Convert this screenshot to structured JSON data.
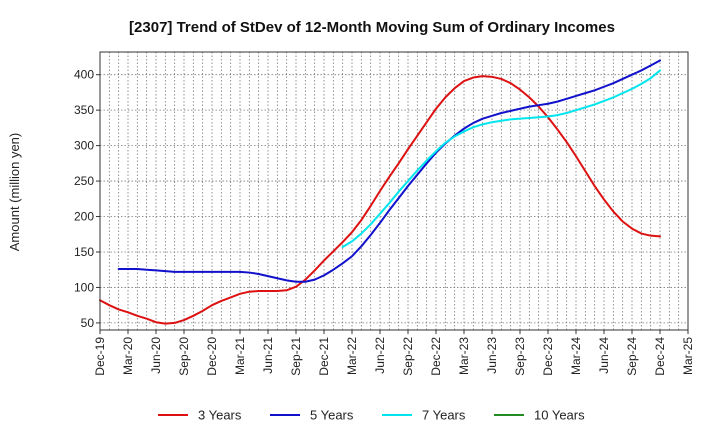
{
  "chart_data": {
    "type": "line",
    "title": "[2307]  Trend of StDev of 12-Month Moving Sum of Ordinary Incomes",
    "xlabel": "",
    "ylabel": "Amount (million yen)",
    "ylim": [
      40,
      432
    ],
    "yticks": [
      50,
      100,
      150,
      200,
      250,
      300,
      350,
      400
    ],
    "xticks": [
      "Dec-19",
      "Mar-20",
      "Jun-20",
      "Sep-20",
      "Dec-20",
      "Mar-21",
      "Jun-21",
      "Sep-21",
      "Dec-21",
      "Mar-22",
      "Jun-22",
      "Sep-22",
      "Dec-22",
      "Mar-23",
      "Jun-23",
      "Sep-23",
      "Dec-23",
      "Mar-24",
      "Jun-24",
      "Sep-24",
      "Dec-24",
      "Mar-25"
    ],
    "grid": true,
    "legend_position": "bottom",
    "series": [
      {
        "name": "3 Years",
        "color": "#dd1111",
        "x": [
          "Dec-19",
          "Jan-20",
          "Feb-20",
          "Mar-20",
          "Apr-20",
          "May-20",
          "Jun-20",
          "Jul-20",
          "Aug-20",
          "Sep-20",
          "Oct-20",
          "Nov-20",
          "Dec-20",
          "Jan-21",
          "Feb-21",
          "Mar-21",
          "Apr-21",
          "May-21",
          "Jun-21",
          "Jul-21",
          "Aug-21",
          "Sep-21",
          "Oct-21",
          "Nov-21",
          "Dec-21",
          "Jan-22",
          "Feb-22",
          "Mar-22",
          "Apr-22",
          "May-22",
          "Jun-22",
          "Jul-22",
          "Aug-22",
          "Sep-22",
          "Oct-22",
          "Nov-22",
          "Dec-22",
          "Jan-23",
          "Feb-23",
          "Mar-23",
          "Apr-23",
          "May-23",
          "Jun-23",
          "Jul-23",
          "Aug-23",
          "Sep-23",
          "Oct-23",
          "Nov-23",
          "Dec-23",
          "Jan-24",
          "Feb-24",
          "Mar-24",
          "Apr-24",
          "May-24",
          "Jun-24",
          "Jul-24",
          "Aug-24",
          "Sep-24",
          "Oct-24",
          "Nov-24",
          "Dec-24"
        ],
        "values": [
          82,
          75,
          69,
          65,
          60,
          56,
          51,
          49,
          50,
          54,
          60,
          67,
          75,
          81,
          86,
          91,
          94,
          95,
          95,
          95,
          96,
          101,
          111,
          124,
          138,
          151,
          164,
          178,
          195,
          215,
          236,
          256,
          275,
          295,
          314,
          333,
          352,
          368,
          381,
          391,
          396,
          398,
          397,
          394,
          388,
          379,
          368,
          355,
          340,
          323,
          305,
          285,
          264,
          243,
          224,
          207,
          193,
          183,
          176,
          173,
          172
        ]
      },
      {
        "name": "5 Years",
        "color": "#1111cc",
        "x": [
          "Dec-19",
          "Jan-20",
          "Feb-20",
          "Mar-20",
          "Apr-20",
          "May-20",
          "Jun-20",
          "Jul-20",
          "Aug-20",
          "Sep-20",
          "Oct-20",
          "Nov-20",
          "Dec-20",
          "Jan-21",
          "Feb-21",
          "Mar-21",
          "Apr-21",
          "May-21",
          "Jun-21",
          "Jul-21",
          "Aug-21",
          "Sep-21",
          "Oct-21",
          "Nov-21",
          "Dec-21",
          "Jan-22",
          "Feb-22",
          "Mar-22",
          "Apr-22",
          "May-22",
          "Jun-22",
          "Jul-22",
          "Aug-22",
          "Sep-22",
          "Oct-22",
          "Nov-22",
          "Dec-22",
          "Jan-23",
          "Feb-23",
          "Mar-23",
          "Apr-23",
          "May-23",
          "Jun-23",
          "Jul-23",
          "Aug-23",
          "Sep-23",
          "Oct-23",
          "Nov-23",
          "Dec-23",
          "Jan-24",
          "Feb-24",
          "Mar-24",
          "Apr-24",
          "May-24",
          "Jun-24",
          "Jul-24",
          "Aug-24",
          "Sep-24",
          "Oct-24",
          "Nov-24",
          "Dec-24"
        ],
        "values": [
          null,
          null,
          126,
          126,
          126,
          125,
          124,
          123,
          122,
          122,
          122,
          122,
          122,
          122,
          122,
          122,
          121,
          119,
          116,
          113,
          110,
          108,
          108,
          111,
          117,
          125,
          134,
          144,
          158,
          174,
          191,
          209,
          226,
          243,
          259,
          275,
          290,
          303,
          314,
          324,
          332,
          338,
          342,
          346,
          349,
          352,
          355,
          357,
          359,
          362,
          366,
          370,
          374,
          378,
          383,
          388,
          394,
          400,
          406,
          413,
          420
        ]
      },
      {
        "name": "7 Years",
        "color": "#00e5ee",
        "x": [
          "Dec-19",
          "Jan-20",
          "Feb-20",
          "Mar-20",
          "Apr-20",
          "May-20",
          "Jun-20",
          "Jul-20",
          "Aug-20",
          "Sep-20",
          "Oct-20",
          "Nov-20",
          "Dec-20",
          "Jan-21",
          "Feb-21",
          "Mar-21",
          "Apr-21",
          "May-21",
          "Jun-21",
          "Jul-21",
          "Aug-21",
          "Sep-21",
          "Oct-21",
          "Nov-21",
          "Dec-21",
          "Jan-22",
          "Feb-22",
          "Mar-22",
          "Apr-22",
          "May-22",
          "Jun-22",
          "Jul-22",
          "Aug-22",
          "Sep-22",
          "Oct-22",
          "Nov-22",
          "Dec-22",
          "Jan-23",
          "Feb-23",
          "Mar-23",
          "Apr-23",
          "May-23",
          "Jun-23",
          "Jul-23",
          "Aug-23",
          "Sep-23",
          "Oct-23",
          "Nov-23",
          "Dec-23",
          "Jan-24",
          "Feb-24",
          "Mar-24",
          "Apr-24",
          "May-24",
          "Jun-24",
          "Jul-24",
          "Aug-24",
          "Sep-24",
          "Oct-24",
          "Nov-24",
          "Dec-24"
        ],
        "values": [
          null,
          null,
          null,
          null,
          null,
          null,
          null,
          null,
          null,
          null,
          null,
          null,
          null,
          null,
          null,
          null,
          null,
          null,
          null,
          null,
          null,
          null,
          null,
          null,
          null,
          null,
          157,
          165,
          176,
          189,
          204,
          219,
          235,
          250,
          265,
          279,
          292,
          304,
          313,
          320,
          326,
          330,
          333,
          335,
          337,
          338,
          339,
          340,
          341,
          343,
          346,
          350,
          354,
          358,
          363,
          368,
          374,
          380,
          387,
          395,
          406
        ]
      },
      {
        "name": "10 Years",
        "color": "#228b22",
        "x": [],
        "values": []
      }
    ]
  }
}
